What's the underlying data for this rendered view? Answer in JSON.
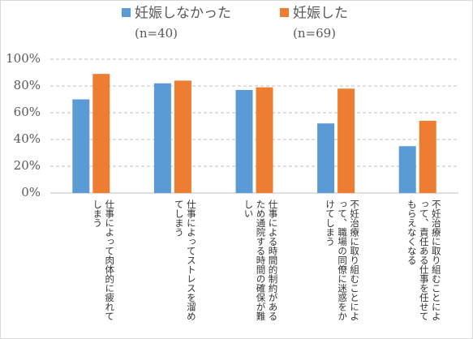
{
  "chart_data": {
    "type": "bar",
    "categories": [
      "仕事によって肉体的に疲れてしまう",
      "仕事によってストレスを溜めてしまう",
      "仕事による時間的制約があるため通院する時間の確保が難しい",
      "不妊治療に取り組むことによって、職場の同僚に迷惑をかけてしまう",
      "不妊治療に取り組むことによって、責任ある仕事を任せてもらえなくなる"
    ],
    "series": [
      {
        "name": "妊娠しなかった",
        "sample": "(n=40)",
        "color": "#5b9bd5",
        "values": [
          70,
          82,
          77,
          52,
          35
        ]
      },
      {
        "name": "妊娠した",
        "sample": "(n=69)",
        "color": "#ed7d31",
        "values": [
          89,
          84,
          79,
          78,
          54
        ]
      }
    ],
    "ylim": [
      0,
      100
    ],
    "yticks": [
      {
        "value": 0,
        "label": "0%"
      },
      {
        "value": 20,
        "label": "20%"
      },
      {
        "value": 40,
        "label": "40%"
      },
      {
        "value": 60,
        "label": "60%"
      },
      {
        "value": 80,
        "label": "80%"
      },
      {
        "value": 100,
        "label": "100%"
      }
    ],
    "grid": true
  }
}
